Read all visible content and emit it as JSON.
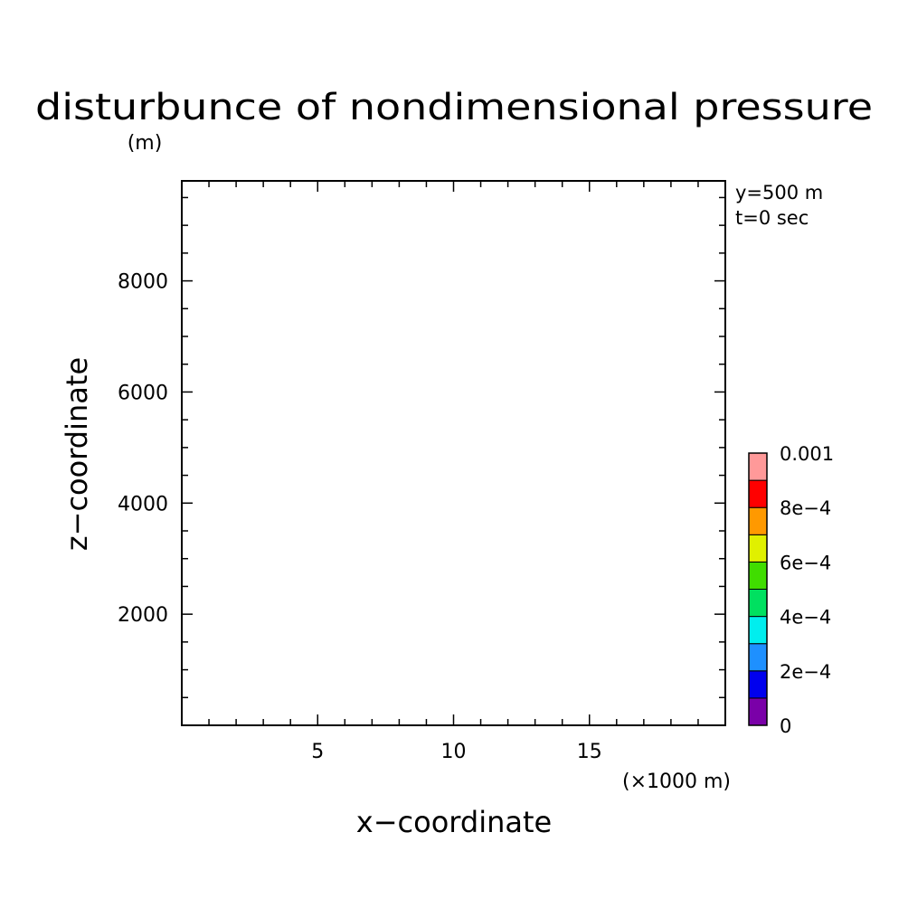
{
  "chart_data": {
    "type": "heatmap",
    "title": "disturbunce of nondimensional pressure",
    "xlabel": "x−coordinate",
    "ylabel": "z−coordinate",
    "y_unit": "(m)",
    "x_unit": "(×1000 m)",
    "annotations": [
      "y=500 m",
      "t=0 sec"
    ],
    "xlim": [
      0,
      20
    ],
    "ylim": [
      0,
      9800
    ],
    "x_ticks": [
      {
        "value": 5,
        "label": "5"
      },
      {
        "value": 10,
        "label": "10"
      },
      {
        "value": 15,
        "label": "15"
      }
    ],
    "x_minor_step": 1,
    "y_ticks": [
      {
        "value": 2000,
        "label": "2000"
      },
      {
        "value": 4000,
        "label": "4000"
      },
      {
        "value": 6000,
        "label": "6000"
      },
      {
        "value": 8000,
        "label": "8000"
      }
    ],
    "y_minor_step": 500,
    "field": "uniform (no visible contours)",
    "colorbar": {
      "min": 0,
      "max": 0.001,
      "levels": [
        0,
        0.0001,
        0.0002,
        0.0003,
        0.0004,
        0.0005,
        0.0006,
        0.0007,
        0.0008,
        0.0009,
        0.001
      ],
      "colors": [
        "#7a00a8",
        "#0000ee",
        "#1e90ff",
        "#00eeee",
        "#00e060",
        "#40dd00",
        "#e0f000",
        "#ff9900",
        "#ff0000",
        "#ff9999"
      ],
      "tick_labels": [
        {
          "value": 0,
          "label": "0"
        },
        {
          "value": 0.0002,
          "label": "2e−4"
        },
        {
          "value": 0.0004,
          "label": "4e−4"
        },
        {
          "value": 0.0006,
          "label": "6e−4"
        },
        {
          "value": 0.0008,
          "label": "8e−4"
        },
        {
          "value": 0.001,
          "label": "0.001"
        }
      ]
    }
  }
}
